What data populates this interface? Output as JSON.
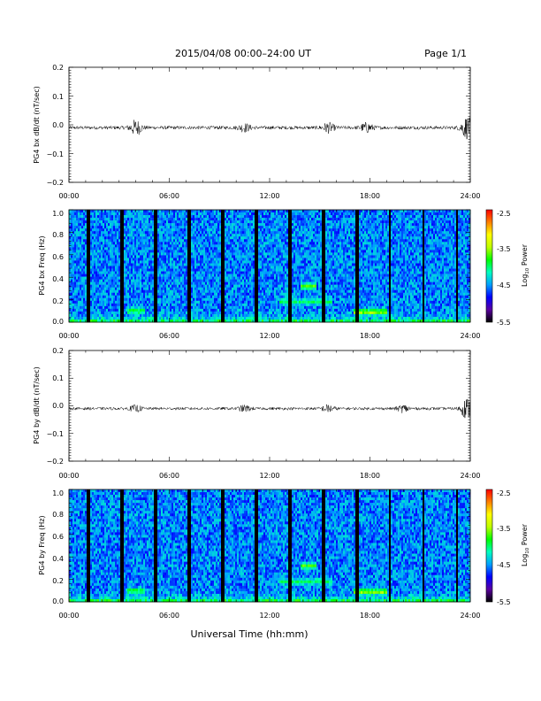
{
  "header": {
    "date_range": "2015/04/08  00:00–24:00 UT",
    "page": "Page 1/1"
  },
  "xlabel": "Universal Time (hh:mm)",
  "time_ticks": [
    "00:00",
    "06:00",
    "12:00",
    "18:00",
    "24:00"
  ],
  "colors": {
    "trace": "#000000",
    "colorbar": [
      "#000000",
      "#5a00a0",
      "#0000ff",
      "#00a0ff",
      "#00ffc0",
      "#00ff00",
      "#c0ff00",
      "#ffff00",
      "#ff8000",
      "#ff0000"
    ]
  },
  "chart_data": [
    {
      "type": "line",
      "ylabel": "PG4 bx dB/dt (nT/sec)",
      "ylim": [
        -0.2,
        0.2
      ],
      "xlim": [
        0,
        24
      ],
      "yticks": [
        "0.2",
        "0.1",
        "0.0",
        "−0.1",
        "−0.2"
      ],
      "baseline": -0.01,
      "bursts": [
        {
          "t": 4.0,
          "amp": 0.025
        },
        {
          "t": 10.5,
          "amp": 0.012
        },
        {
          "t": 15.5,
          "amp": 0.015
        },
        {
          "t": 17.8,
          "amp": 0.015
        },
        {
          "t": 23.8,
          "amp": 0.035
        }
      ],
      "noise_amplitude": 0.006
    },
    {
      "type": "heatmap",
      "ylabel": "PG4 bx Freq (Hz)",
      "ylim": [
        0,
        1.0
      ],
      "xlim": [
        0,
        24
      ],
      "yticks": [
        "1.0",
        "0.8",
        "0.6",
        "0.4",
        "0.2",
        "0.0"
      ],
      "colorbar": {
        "label": "Log10 Power",
        "range": [
          -5.5,
          -2.5
        ],
        "ticks": [
          "-2.5",
          "-3.5",
          "-4.5",
          "-5.5"
        ]
      },
      "gaps_hours": [
        1.2,
        3.2,
        5.2,
        7.2,
        9.2,
        11.2,
        13.2,
        15.2,
        17.2,
        19.2,
        21.2,
        23.2
      ],
      "features": [
        {
          "t0": 13.8,
          "t1": 14.8,
          "freq": 0.32,
          "value": -3.6
        },
        {
          "t0": 12.6,
          "t1": 15.8,
          "freq": 0.18,
          "value": -3.9
        },
        {
          "t0": 17.0,
          "t1": 19.0,
          "freq": 0.09,
          "value": -3.4
        },
        {
          "t0": 3.5,
          "t1": 4.5,
          "freq": 0.1,
          "value": -3.8
        }
      ]
    },
    {
      "type": "line",
      "ylabel": "PG4 by dB/dt (nT/sec)",
      "ylim": [
        -0.2,
        0.2
      ],
      "xlim": [
        0,
        24
      ],
      "yticks": [
        "0.2",
        "0.1",
        "0.0",
        "−0.1",
        "−0.2"
      ],
      "baseline": -0.01,
      "bursts": [
        {
          "t": 4.0,
          "amp": 0.01
        },
        {
          "t": 10.5,
          "amp": 0.01
        },
        {
          "t": 15.5,
          "amp": 0.012
        },
        {
          "t": 20.0,
          "amp": 0.012
        },
        {
          "t": 23.8,
          "amp": 0.035
        }
      ],
      "noise_amplitude": 0.005
    },
    {
      "type": "heatmap",
      "ylabel": "PG4 by Freq (Hz)",
      "ylim": [
        0,
        1.0
      ],
      "xlim": [
        0,
        24
      ],
      "yticks": [
        "1.0",
        "0.8",
        "0.6",
        "0.4",
        "0.2",
        "0.0"
      ],
      "colorbar": {
        "label": "Log10 Power",
        "range": [
          -5.5,
          -2.5
        ],
        "ticks": [
          "-2.5",
          "-3.5",
          "-4.5",
          "-5.5"
        ]
      },
      "gaps_hours": [
        1.2,
        3.2,
        5.2,
        7.2,
        9.2,
        11.2,
        13.2,
        15.2,
        17.2,
        19.2,
        21.2,
        23.2
      ],
      "features": [
        {
          "t0": 13.8,
          "t1": 14.8,
          "freq": 0.32,
          "value": -3.6
        },
        {
          "t0": 12.6,
          "t1": 15.8,
          "freq": 0.18,
          "value": -3.9
        },
        {
          "t0": 17.0,
          "t1": 19.0,
          "freq": 0.09,
          "value": -3.4
        },
        {
          "t0": 3.5,
          "t1": 4.5,
          "freq": 0.1,
          "value": -3.8
        }
      ]
    }
  ]
}
